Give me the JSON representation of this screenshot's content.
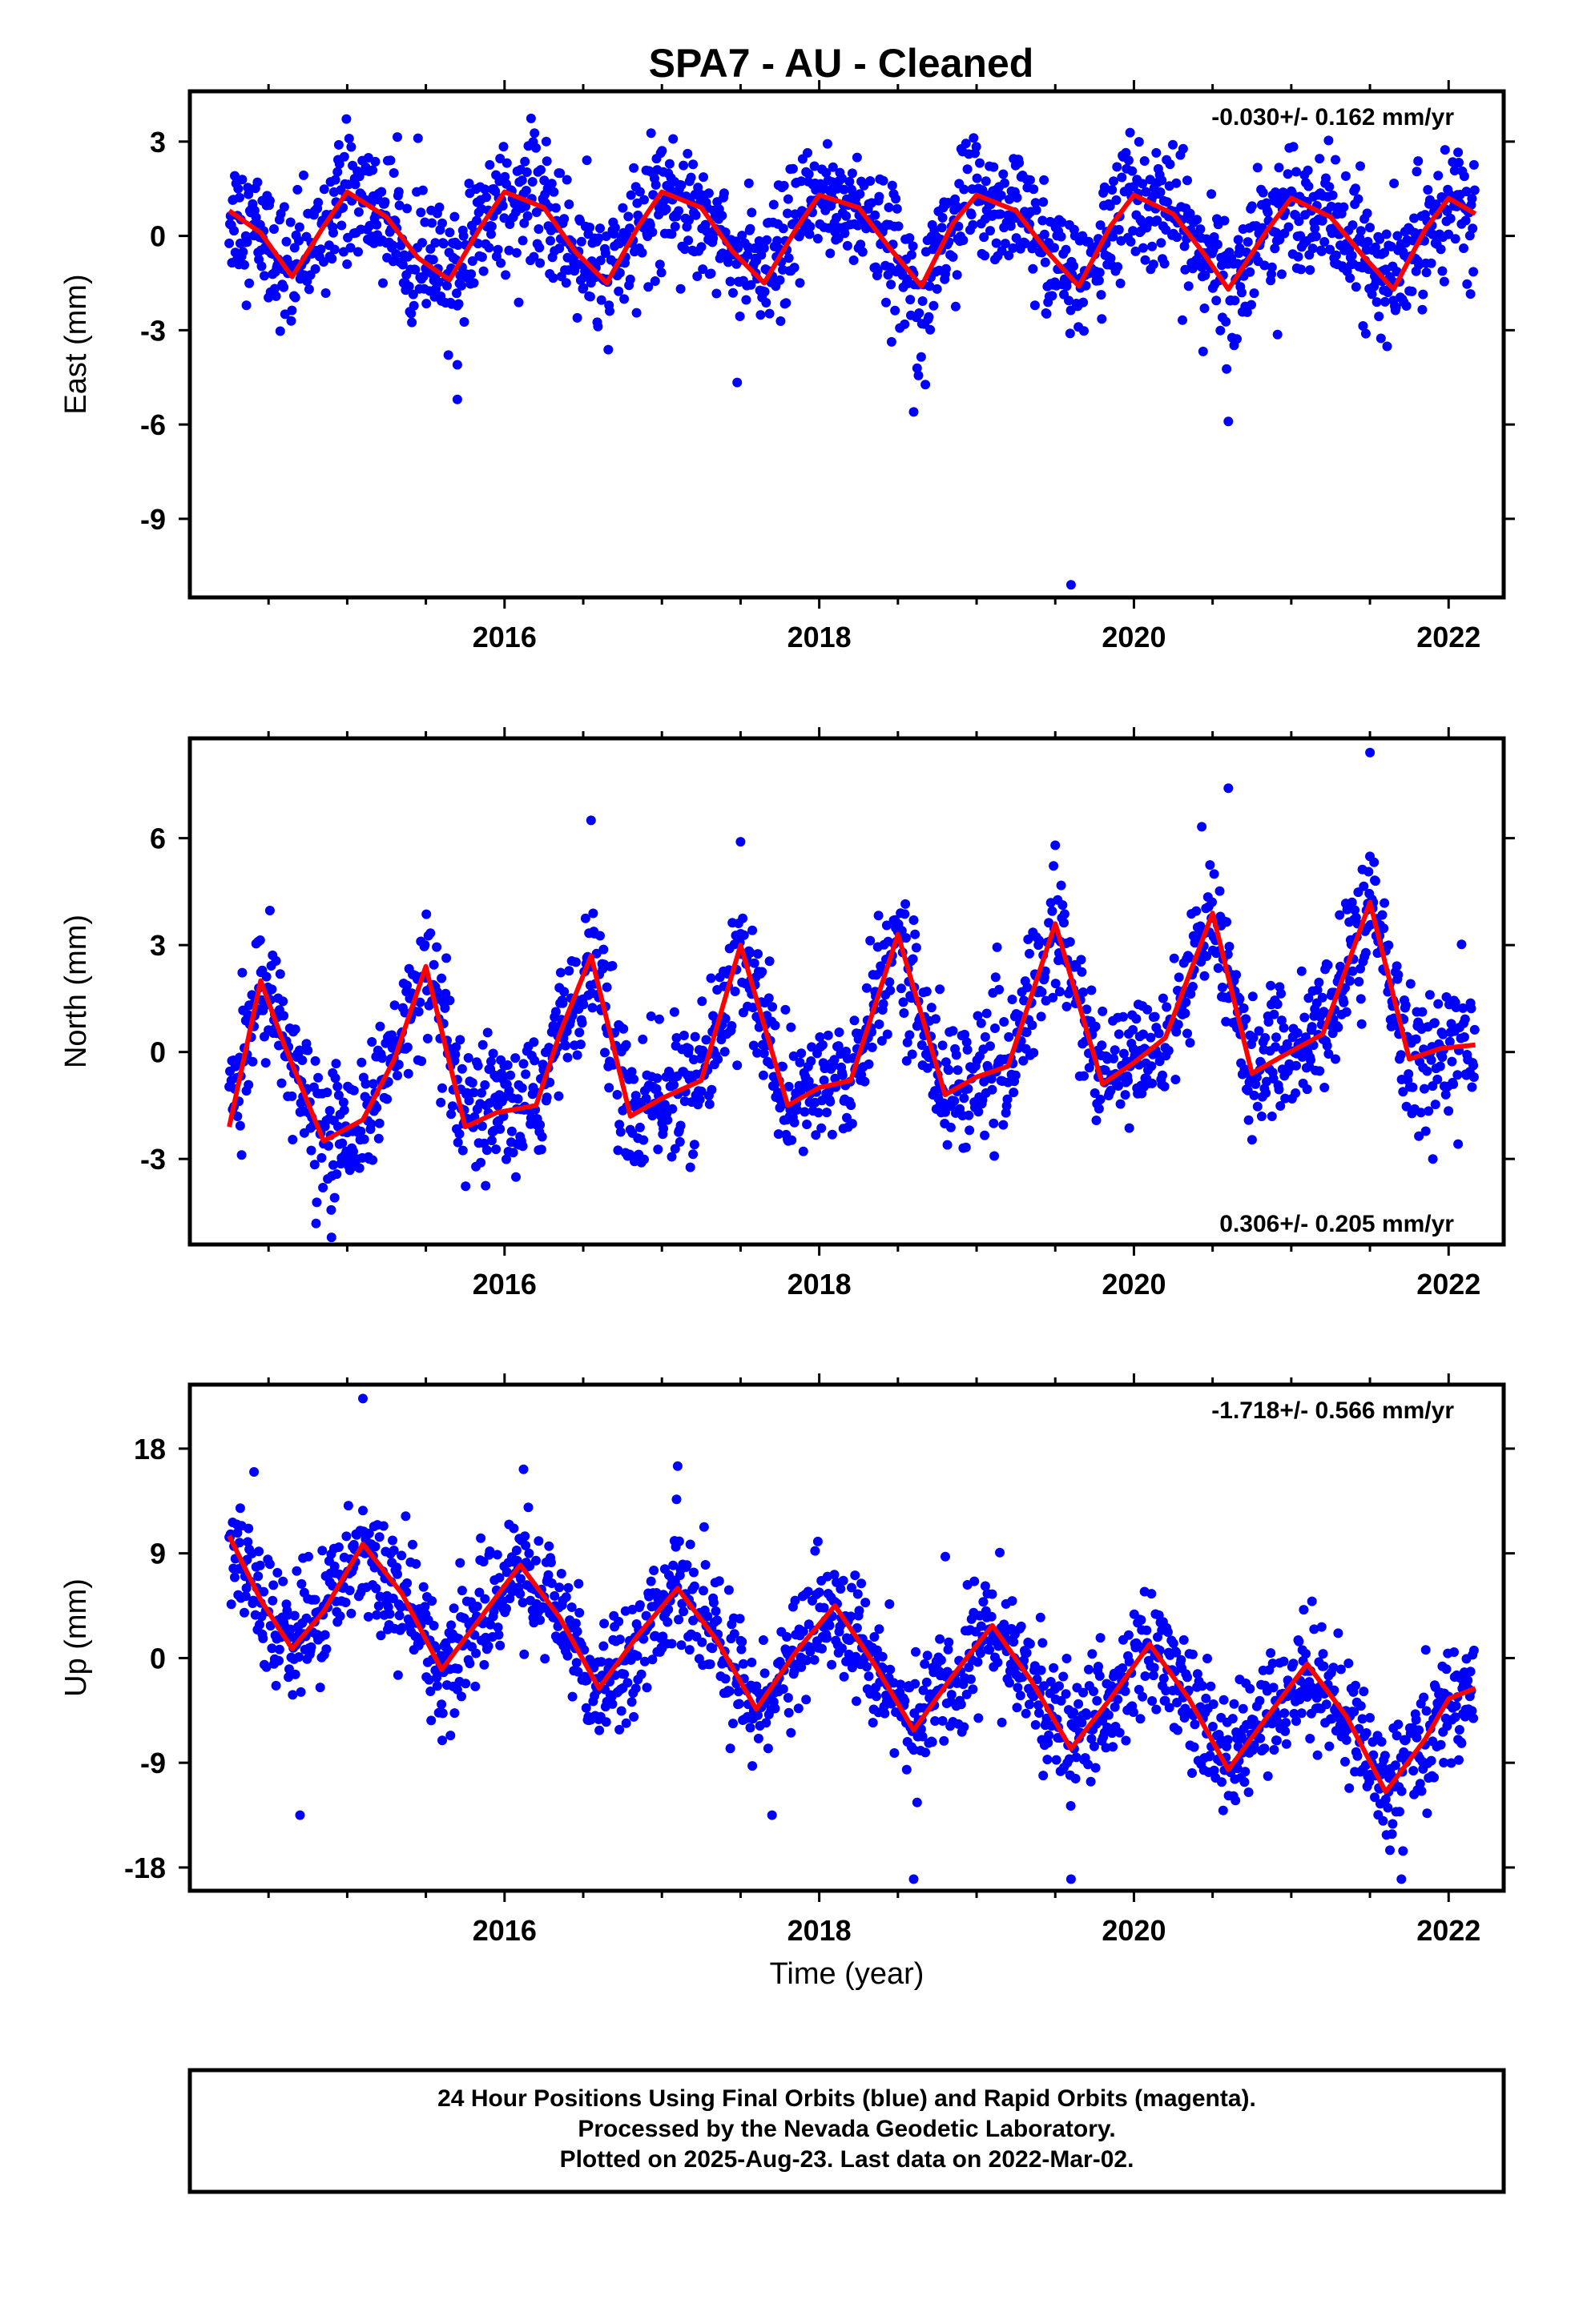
{
  "title": "SPA7  - AU - Cleaned",
  "colors": {
    "points": "#0000ff",
    "fit": "#ff0000",
    "frame": "#000000"
  },
  "caption": {
    "lines": [
      "24 Hour Positions Using Final Orbits (blue) and Rapid Orbits (magenta).",
      "Processed by the Nevada Geodetic Laboratory.",
      "Plotted on 2025-Aug-23. Last data on 2022-Mar-02."
    ]
  },
  "chart_data": [
    {
      "type": "scatter",
      "ylabel": "East (mm)",
      "rate_text": "-0.030+/- 0.162 mm/yr",
      "rate_position": "top-right",
      "xlim": [
        2014.0,
        2022.35
      ],
      "ylim": [
        -11.5,
        4.6
      ],
      "x_ticks": [
        2016,
        2018,
        2020,
        2022
      ],
      "x_tick_labels": [
        "2016",
        "2018",
        "2020",
        "2022"
      ],
      "y_ticks": [
        3,
        0,
        -3,
        -6,
        -9
      ],
      "y_tick_labels": [
        "3",
        "0",
        "-3",
        "-6",
        "-9"
      ],
      "data_start": 2014.25,
      "data_end": 2022.17,
      "series": [
        {
          "kind": "fit-line",
          "x": [
            2014.25,
            2014.45,
            2014.65,
            2014.85,
            2015.0,
            2015.25,
            2015.45,
            2015.65,
            2015.85,
            2016.0,
            2016.25,
            2016.45,
            2016.65,
            2016.85,
            2017.0,
            2017.25,
            2017.45,
            2017.65,
            2017.85,
            2018.0,
            2018.25,
            2018.45,
            2018.65,
            2018.85,
            2019.0,
            2019.25,
            2019.45,
            2019.65,
            2019.85,
            2020.0,
            2020.25,
            2020.45,
            2020.6,
            2020.85,
            2021.0,
            2021.25,
            2021.45,
            2021.65,
            2021.85,
            2022.0,
            2022.17
          ],
          "y": [
            0.8,
            0.1,
            -1.3,
            0.3,
            1.4,
            0.6,
            -0.7,
            -1.4,
            0.3,
            1.4,
            0.9,
            -0.5,
            -1.5,
            0.3,
            1.4,
            0.9,
            -0.5,
            -1.5,
            0.2,
            1.3,
            0.9,
            -0.4,
            -1.6,
            0.4,
            1.3,
            0.8,
            -0.5,
            -1.6,
            0.3,
            1.3,
            0.7,
            -0.6,
            -1.7,
            0.2,
            1.2,
            0.6,
            -0.6,
            -1.7,
            0.2,
            1.2,
            0.7
          ]
        }
      ],
      "scatter_model": {
        "amplitude": 1.4,
        "noise": 1.0,
        "outliers": [
          [
            2015.7,
            -4.1
          ],
          [
            2015.7,
            -5.2
          ],
          [
            2018.6,
            -5.6
          ],
          [
            2019.6,
            -11.1
          ],
          [
            2020.6,
            -5.9
          ]
        ]
      }
    },
    {
      "type": "scatter",
      "ylabel": "North (mm)",
      "rate_text": "0.306+/- 0.205 mm/yr",
      "rate_position": "bottom-right",
      "xlim": [
        2014.0,
        2022.35
      ],
      "ylim": [
        -5.4,
        8.8
      ],
      "x_ticks": [
        2016,
        2018,
        2020,
        2022
      ],
      "x_tick_labels": [
        "2016",
        "2018",
        "2020",
        "2022"
      ],
      "y_ticks": [
        6,
        3,
        0,
        -3
      ],
      "y_tick_labels": [
        "6",
        "3",
        "0",
        "-3"
      ],
      "data_start": 2014.25,
      "data_end": 2022.17,
      "series": [
        {
          "kind": "fit-line",
          "x": [
            2014.25,
            2014.45,
            2014.6,
            2014.85,
            2015.1,
            2015.3,
            2015.5,
            2015.75,
            2015.95,
            2016.2,
            2016.35,
            2016.55,
            2016.8,
            2017.0,
            2017.25,
            2017.5,
            2017.8,
            2018.0,
            2018.2,
            2018.5,
            2018.8,
            2019.0,
            2019.2,
            2019.5,
            2019.8,
            2020.0,
            2020.2,
            2020.5,
            2020.75,
            2020.95,
            2021.2,
            2021.5,
            2021.75,
            2021.95,
            2022.17
          ],
          "y": [
            -2.1,
            2.0,
            0.2,
            -2.5,
            -1.9,
            -0.2,
            2.4,
            -2.1,
            -1.7,
            -1.5,
            0.5,
            2.7,
            -1.8,
            -1.3,
            -0.8,
            3.0,
            -1.5,
            -1.0,
            -0.8,
            3.3,
            -1.2,
            -0.7,
            -0.4,
            3.6,
            -0.9,
            -0.3,
            0.4,
            3.9,
            -0.6,
            -0.1,
            0.5,
            4.2,
            -0.2,
            0.1,
            0.2
          ]
        }
      ],
      "scatter_model": {
        "amplitude": 2.0,
        "noise": 0.9,
        "outliers": [
          [
            2014.9,
            -5.2
          ],
          [
            2016.55,
            6.5
          ],
          [
            2017.5,
            5.9
          ],
          [
            2019.5,
            5.8
          ],
          [
            2020.6,
            7.4
          ],
          [
            2021.5,
            8.4
          ],
          [
            2021.9,
            -3.0
          ]
        ]
      }
    },
    {
      "type": "scatter",
      "ylabel": "Up (mm)",
      "xlabel": "Time (year)",
      "rate_text": "-1.718+/- 0.566 mm/yr",
      "rate_position": "top-right",
      "xlim": [
        2014.0,
        2022.35
      ],
      "ylim": [
        -20.0,
        23.5
      ],
      "x_ticks": [
        2016,
        2018,
        2020,
        2022
      ],
      "x_tick_labels": [
        "2016",
        "2018",
        "2020",
        "2022"
      ],
      "y_ticks": [
        18,
        9,
        0,
        -9,
        -18
      ],
      "y_tick_labels": [
        "18",
        "9",
        "0",
        "-9",
        "-18"
      ],
      "data_start": 2014.25,
      "data_end": 2022.17,
      "series": [
        {
          "kind": "fit-line",
          "x": [
            2014.25,
            2014.45,
            2014.65,
            2014.85,
            2015.1,
            2015.35,
            2015.6,
            2015.85,
            2016.1,
            2016.35,
            2016.6,
            2016.85,
            2017.1,
            2017.35,
            2017.6,
            2017.85,
            2018.1,
            2018.35,
            2018.6,
            2018.85,
            2019.1,
            2019.35,
            2019.6,
            2019.85,
            2020.1,
            2020.35,
            2020.6,
            2020.85,
            2021.1,
            2021.35,
            2021.6,
            2021.85,
            2022.0,
            2022.17
          ],
          "y": [
            10.5,
            5.0,
            0.8,
            4.0,
            9.8,
            5.5,
            -1.0,
            3.5,
            8.0,
            3.5,
            -2.6,
            2.0,
            6.0,
            1.5,
            -4.4,
            0.5,
            4.5,
            -0.5,
            -6.2,
            -1.5,
            2.8,
            -2.0,
            -7.8,
            -3.5,
            1.2,
            -3.5,
            -9.6,
            -5.0,
            -0.5,
            -5.0,
            -11.5,
            -7.0,
            -3.5,
            -2.6
          ]
        }
      ],
      "scatter_model": {
        "amplitude": 5.0,
        "noise": 2.6,
        "outliers": [
          [
            2014.7,
            -13.5
          ],
          [
            2015.1,
            22.3
          ],
          [
            2017.1,
            16.5
          ],
          [
            2017.7,
            -13.5
          ],
          [
            2018.6,
            -19.0
          ],
          [
            2019.6,
            -19.0
          ],
          [
            2021.7,
            -19.0
          ]
        ]
      }
    }
  ]
}
